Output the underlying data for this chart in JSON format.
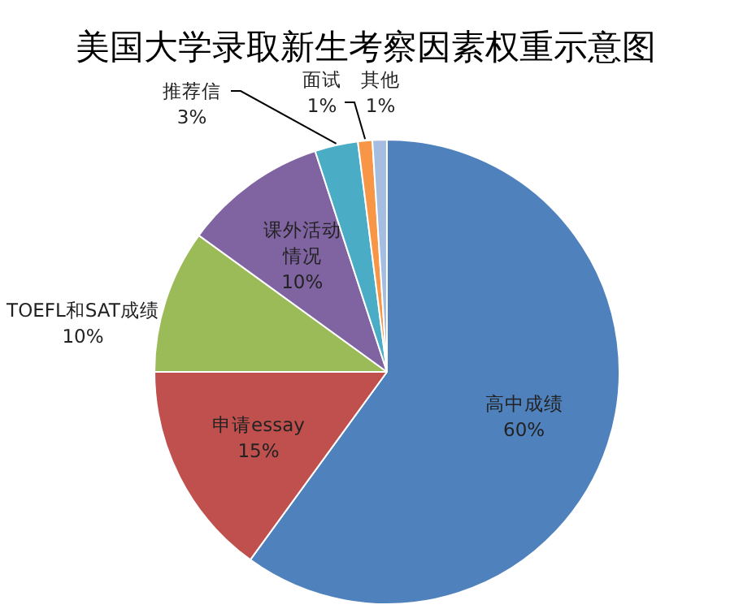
{
  "chart_data": {
    "type": "pie",
    "title": "美国大学录取新生考察因素权重示意图",
    "categories": [
      "高中成绩",
      "申请essay",
      "TOEFL和SAT成绩",
      "课外活动情况",
      "推荐信",
      "面试",
      "其他"
    ],
    "values": [
      60,
      15,
      10,
      10,
      3,
      1,
      1
    ],
    "value_labels": [
      "60%",
      "15%",
      "10%",
      "10%",
      "3%",
      "1%",
      "1%"
    ],
    "colors": [
      "#4f81bd",
      "#c0504d",
      "#9bbb59",
      "#8064a2",
      "#4bacc6",
      "#f79646",
      "#a5bde0"
    ]
  }
}
